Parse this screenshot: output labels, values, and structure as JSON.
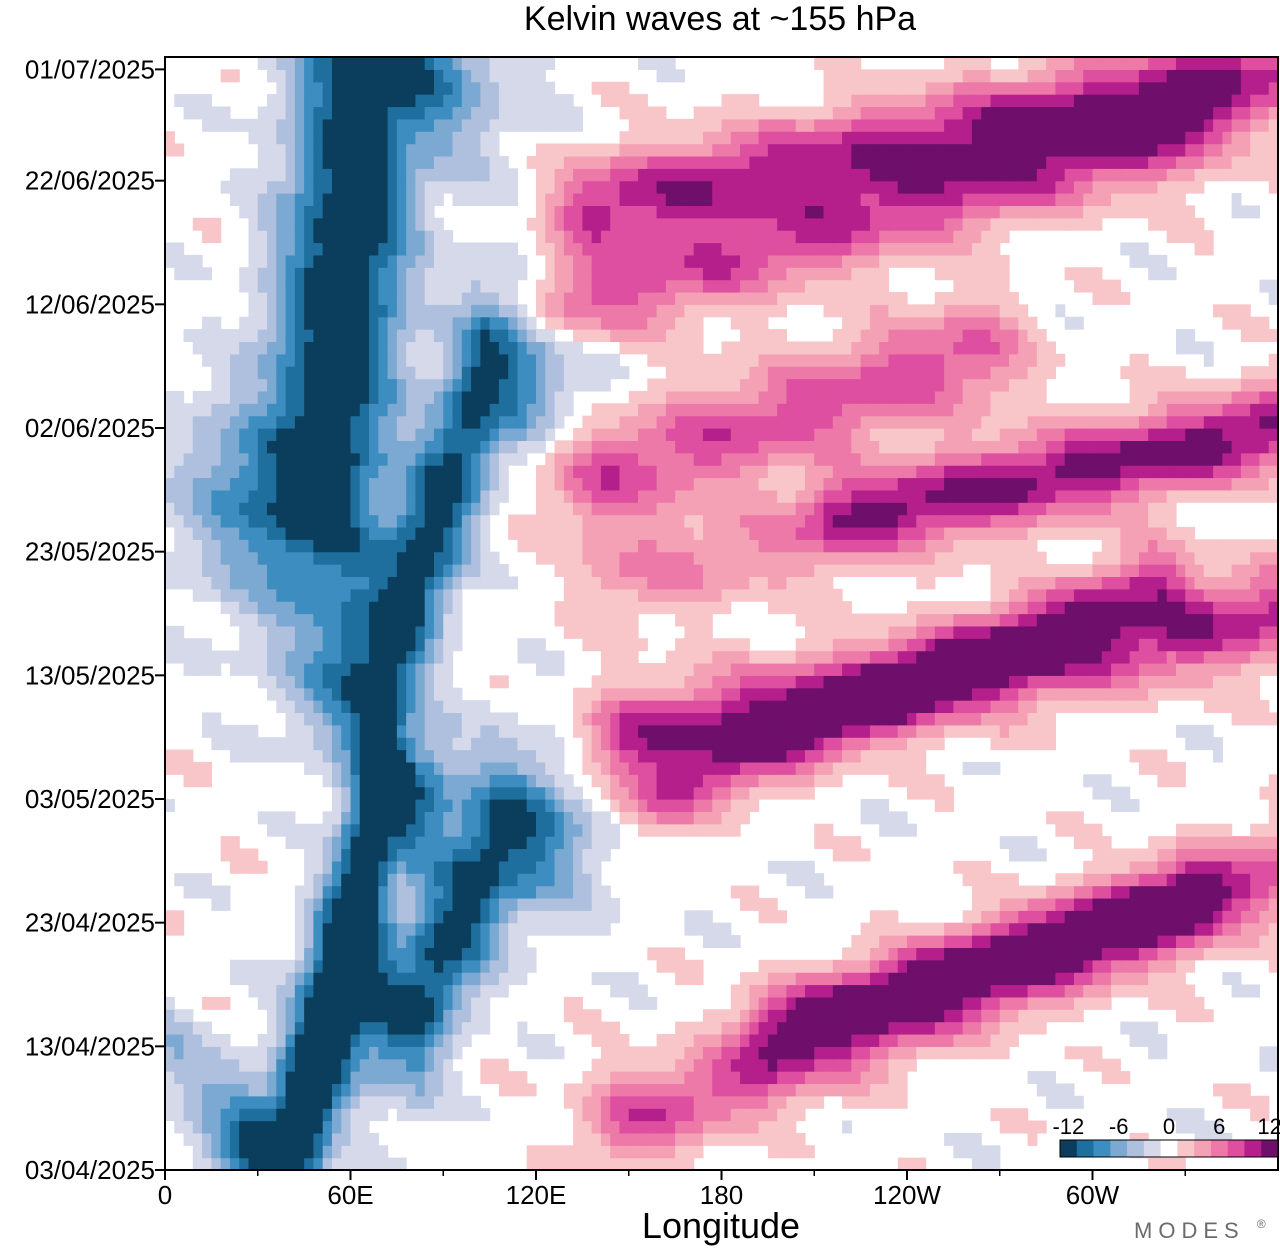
{
  "chart_data": {
    "type": "heatmap",
    "title": "Kelvin waves at ~155 hPa",
    "xlabel": "Longitude",
    "ylabel": "",
    "x_ticks": [
      "0",
      "60E",
      "120E",
      "180",
      "120W",
      "60W"
    ],
    "x_range": [
      0,
      360
    ],
    "x_tick_values": [
      0,
      60,
      120,
      180,
      240,
      300
    ],
    "y_ticks": [
      "01/07/2025",
      "22/06/2025",
      "12/06/2025",
      "02/06/2025",
      "23/05/2025",
      "13/05/2025",
      "03/05/2025",
      "23/04/2025",
      "13/04/2025",
      "03/04/2025"
    ],
    "y_tick_days": [
      89,
      80,
      70,
      60,
      50,
      40,
      30,
      20,
      10,
      0
    ],
    "y_range": [
      "03/04/2025",
      "01/07/2025"
    ],
    "grid": false,
    "colorbar": {
      "labels": [
        "-12",
        "-6",
        "0",
        "6",
        "12"
      ],
      "levels": [
        -12,
        -10,
        -8,
        -6,
        -4,
        -2,
        0,
        2,
        4,
        6,
        8,
        10,
        12
      ],
      "colors": [
        "#0b3d5c",
        "#1f6f9e",
        "#3d8dc0",
        "#7ba9d2",
        "#aec0dd",
        "#d5d9ea",
        "#ffffff",
        "#f8c6c9",
        "#f4a1b6",
        "#ec79a8",
        "#de4fa0",
        "#b41f8c",
        "#6e0f6b"
      ],
      "placement": "bottom-right"
    },
    "anomaly_bands": [
      {
        "sign": -1,
        "peak": 14,
        "from": [
          40,
          0
        ],
        "to": [
          70,
          30
        ],
        "width": 9
      },
      {
        "sign": -1,
        "peak": 12,
        "from": [
          80,
          13
        ],
        "to": [
          110,
          27
        ],
        "width": 10
      },
      {
        "sign": -1,
        "peak": 14,
        "from": [
          50,
          55
        ],
        "to": [
          65,
          89
        ],
        "width": 14
      },
      {
        "sign": -1,
        "peak": 12,
        "from": [
          70,
          40
        ],
        "to": [
          105,
          65
        ],
        "width": 10
      },
      {
        "sign": -1,
        "peak": 4,
        "from": [
          0,
          10
        ],
        "to": [
          30,
          4
        ],
        "width": 6
      },
      {
        "sign": 1,
        "peak": 8,
        "from": [
          150,
          4
        ],
        "to": [
          360,
          24
        ],
        "width": 6
      },
      {
        "sign": 1,
        "peak": 9,
        "from": [
          200,
          12
        ],
        "to": [
          330,
          22
        ],
        "width": 5
      },
      {
        "sign": 1,
        "peak": 7,
        "from": [
          160,
          30
        ],
        "to": [
          320,
          48
        ],
        "width": 5
      },
      {
        "sign": 1,
        "peak": 10,
        "from": [
          150,
          35
        ],
        "to": [
          360,
          45
        ],
        "width": 6
      },
      {
        "sign": 1,
        "peak": 5,
        "from": [
          150,
          48
        ],
        "to": [
          360,
          60
        ],
        "width": 6
      },
      {
        "sign": 1,
        "peak": 8,
        "from": [
          140,
          56
        ],
        "to": [
          260,
          66
        ],
        "width": 7
      },
      {
        "sign": 1,
        "peak": 7,
        "from": [
          220,
          53
        ],
        "to": [
          360,
          60
        ],
        "width": 5
      },
      {
        "sign": 1,
        "peak": 8,
        "from": [
          130,
          70
        ],
        "to": [
          330,
          84
        ],
        "width": 6
      },
      {
        "sign": 1,
        "peak": 10,
        "from": [
          140,
          78
        ],
        "to": [
          360,
          89
        ],
        "width": 6
      }
    ]
  },
  "brand": "MODES",
  "brand_mark": "®"
}
